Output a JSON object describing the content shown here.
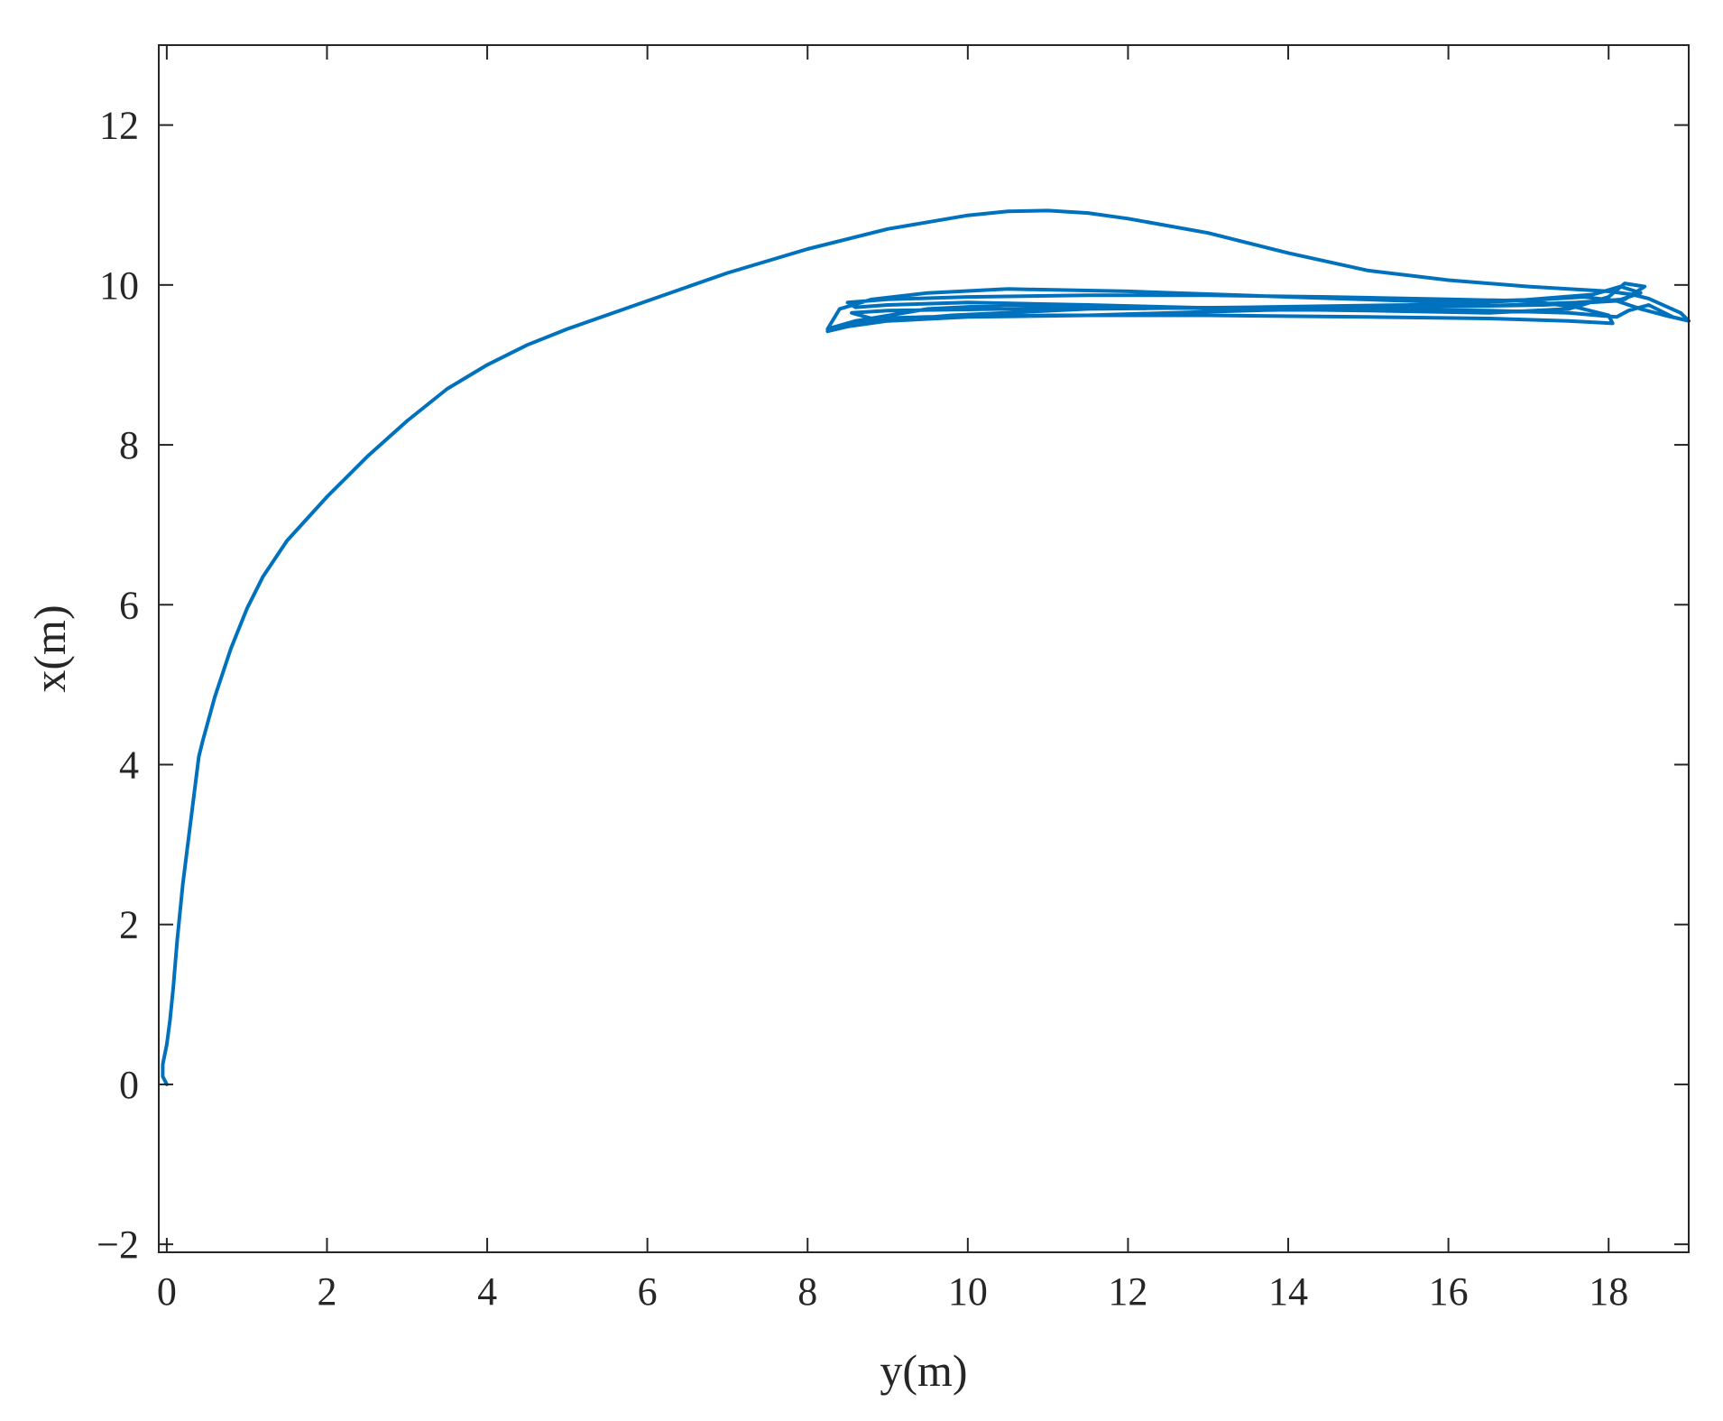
{
  "chart_data": {
    "type": "line",
    "title": "",
    "xlabel": "y(m)",
    "ylabel": "x(m)",
    "xlim": [
      -0.1,
      19
    ],
    "ylim": [
      -2.1,
      13
    ],
    "xticks": [
      0,
      2,
      4,
      6,
      8,
      10,
      12,
      14,
      16,
      18
    ],
    "yticks": [
      -2,
      0,
      2,
      4,
      6,
      8,
      10,
      12
    ],
    "xtick_labels": [
      "0",
      "2",
      "4",
      "6",
      "8",
      "10",
      "12",
      "14",
      "16",
      "18"
    ],
    "ytick_labels": [
      "−2",
      "0",
      "2",
      "4",
      "6",
      "8",
      "10",
      "12"
    ],
    "grid": false,
    "box": true,
    "colors": {
      "line": "#0072BD",
      "axis": "#262626"
    },
    "series": [
      {
        "x": [
          0.0,
          -0.05,
          -0.05,
          0.0,
          0.04,
          0.08,
          0.13,
          0.2,
          0.3,
          0.4,
          0.45,
          0.6,
          0.8,
          1.0,
          1.2,
          1.5,
          2.0,
          2.5,
          3.0,
          3.5,
          4.0,
          4.5,
          5.0,
          6.0,
          7.0,
          8.0,
          9.0,
          10.0,
          10.5,
          11.0,
          11.5,
          12.0,
          13.0,
          14.0,
          15.0,
          16.0,
          17.0,
          17.5,
          18.0,
          18.3,
          18.5,
          18.9,
          19.0
        ],
        "y": [
          0.0,
          0.1,
          0.25,
          0.5,
          0.8,
          1.2,
          1.8,
          2.5,
          3.3,
          4.1,
          4.3,
          4.85,
          5.45,
          5.95,
          6.35,
          6.8,
          7.35,
          7.85,
          8.3,
          8.7,
          9.0,
          9.25,
          9.45,
          9.8,
          10.15,
          10.45,
          10.7,
          10.87,
          10.92,
          10.93,
          10.9,
          10.83,
          10.65,
          10.4,
          10.18,
          10.06,
          9.98,
          9.95,
          9.92,
          9.88,
          9.83,
          9.65,
          9.55
        ]
      },
      {
        "x": [
          19.0,
          18.7,
          18.4,
          18.1,
          17.7,
          17.2,
          16.5,
          15.5,
          14.0,
          12.0,
          10.5,
          9.5,
          8.8,
          8.4,
          8.25,
          8.6,
          9.5,
          10.5,
          12.0,
          13.5,
          15.0,
          16.5,
          17.5,
          18.0,
          18.2,
          18.45,
          18.2,
          17.6,
          16.8,
          15.5,
          13.5,
          11.5,
          10.0,
          9.0,
          8.5,
          8.25,
          8.6,
          9.8,
          11.5,
          13.5,
          15.5,
          16.8,
          17.8,
          18.15,
          18.4,
          18.1,
          17.2,
          15.5,
          13.5,
          11.5,
          10.0,
          9.0,
          8.6,
          8.5,
          9.0,
          10.0,
          11.5,
          13.0,
          14.5,
          16.0,
          17.0,
          17.6,
          18.0,
          18.05,
          17.5,
          16.5,
          15.0,
          13.0,
          11.0,
          9.5,
          8.8,
          8.55,
          9.0,
          10.5,
          12.5,
          14.5,
          16.5,
          17.5,
          18.1,
          18.25,
          18.5,
          18.8,
          19.0
        ],
        "y": [
          9.55,
          9.62,
          9.7,
          9.8,
          9.85,
          9.82,
          9.8,
          9.8,
          9.85,
          9.92,
          9.95,
          9.9,
          9.82,
          9.7,
          9.45,
          9.55,
          9.7,
          9.75,
          9.72,
          9.7,
          9.68,
          9.65,
          9.7,
          9.85,
          10.02,
          9.98,
          9.82,
          9.78,
          9.75,
          9.72,
          9.68,
          9.62,
          9.6,
          9.55,
          9.48,
          9.42,
          9.52,
          9.62,
          9.7,
          9.72,
          9.75,
          9.8,
          9.88,
          9.98,
          9.9,
          9.8,
          9.75,
          9.72,
          9.7,
          9.75,
          9.78,
          9.75,
          9.72,
          9.78,
          9.82,
          9.85,
          9.87,
          9.87,
          9.85,
          9.82,
          9.8,
          9.72,
          9.62,
          9.52,
          9.55,
          9.58,
          9.6,
          9.62,
          9.62,
          9.6,
          9.58,
          9.65,
          9.68,
          9.7,
          9.72,
          9.7,
          9.68,
          9.65,
          9.6,
          9.68,
          9.75,
          9.6,
          9.55
        ]
      }
    ]
  }
}
